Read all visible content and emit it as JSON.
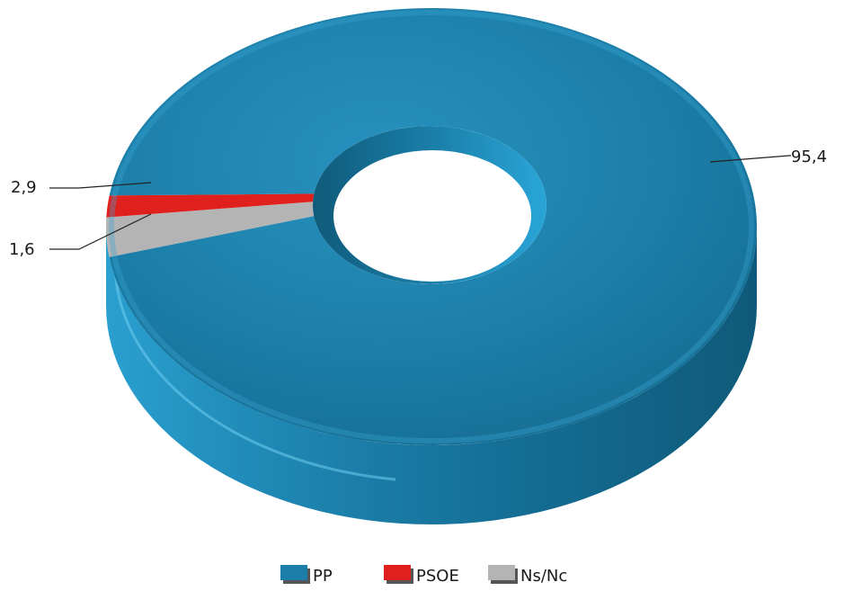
{
  "chart_data": {
    "type": "pie",
    "style": "3d-donut",
    "title": "",
    "legend_position": "bottom",
    "slices": [
      {
        "label": "PP",
        "value": 95.4,
        "value_text": "95,4",
        "color": "#1b7ea8"
      },
      {
        "label": "PSOE",
        "value": 1.6,
        "value_text": "1,6",
        "color": "#e0201c"
      },
      {
        "label": "Ns/Nc",
        "value": 2.9,
        "value_text": "2,9",
        "color": "#b4b4b4"
      }
    ]
  }
}
